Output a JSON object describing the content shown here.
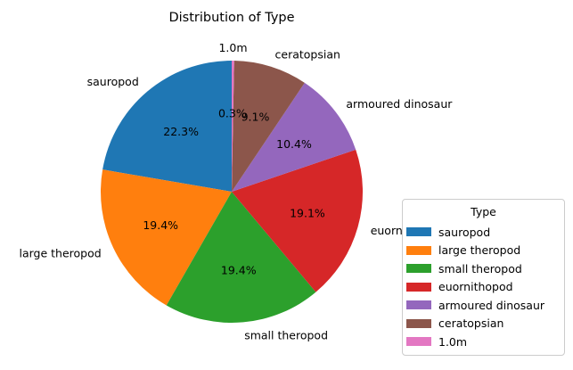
{
  "chart_data": {
    "type": "pie",
    "title": "Distribution of Type",
    "legend_title": "Type",
    "legend_position": "lower-right",
    "start_angle_deg": 90,
    "direction": "counterclockwise",
    "slices": [
      {
        "label": "sauropod",
        "value": 22.3,
        "pct_label": "22.3%",
        "color": "#1f77b4"
      },
      {
        "label": "large theropod",
        "value": 19.4,
        "pct_label": "19.4%",
        "color": "#ff7f0e"
      },
      {
        "label": "small theropod",
        "value": 19.4,
        "pct_label": "19.4%",
        "color": "#2ca02c"
      },
      {
        "label": "euornithopod",
        "value": 19.1,
        "pct_label": "19.1%",
        "color": "#d62728"
      },
      {
        "label": "armoured dinosaur",
        "value": 10.4,
        "pct_label": "10.4%",
        "color": "#9467bd"
      },
      {
        "label": "ceratopsian",
        "value": 9.1,
        "pct_label": "9.1%",
        "color": "#8c564b"
      },
      {
        "label": "1.0m",
        "value": 0.3,
        "pct_label": "0.3%",
        "color": "#e377c2"
      }
    ]
  }
}
